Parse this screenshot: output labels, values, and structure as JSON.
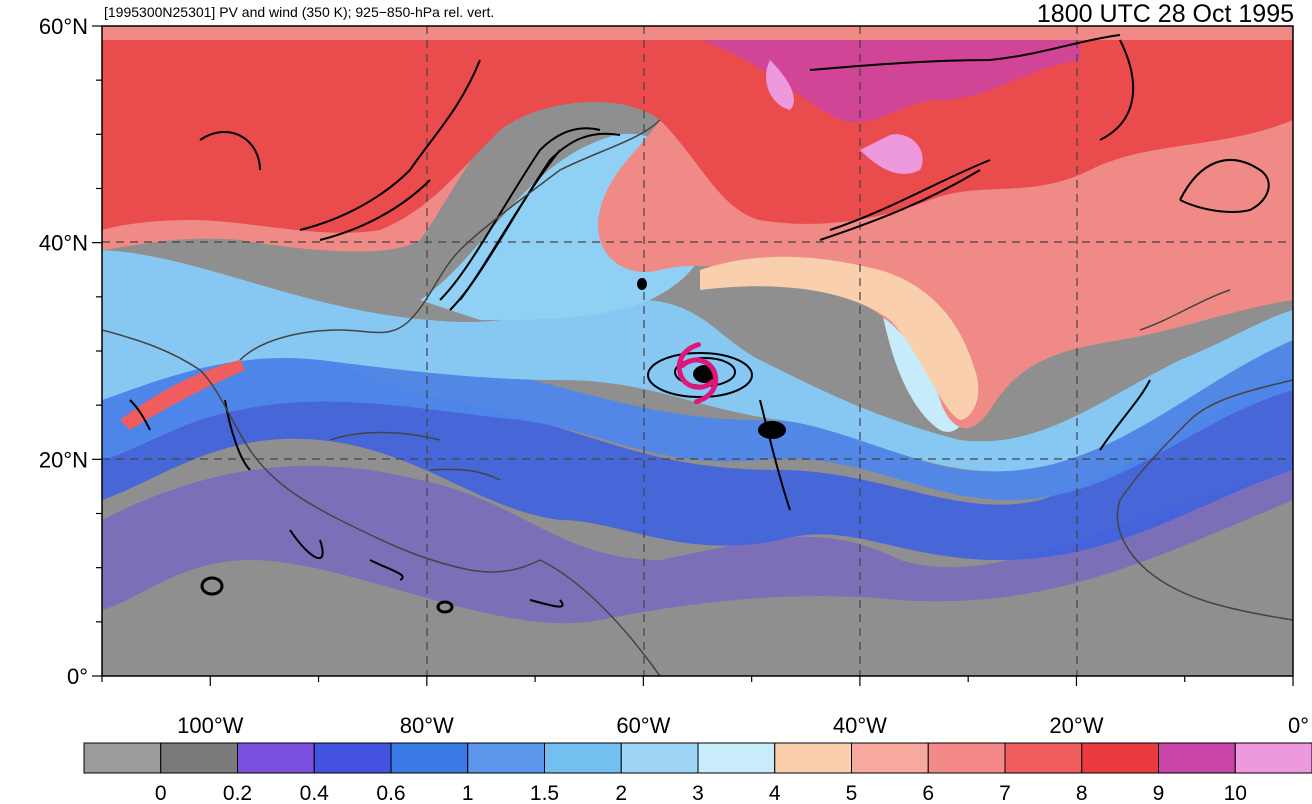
{
  "header": {
    "left_title": "[1995300N25301] PV and wind (350 K); 925−850-hPa rel. vert.",
    "right_title": "1800 UTC 28 Oct 1995"
  },
  "map": {
    "lon_range": [
      -110,
      0
    ],
    "lat_range": [
      0,
      60
    ],
    "lat_labels": [
      {
        "lat": 60,
        "text": "60°N"
      },
      {
        "lat": 40,
        "text": "40°N"
      },
      {
        "lat": 20,
        "text": "20°N"
      },
      {
        "lat": 0,
        "text": "0°"
      }
    ],
    "lon_labels": [
      {
        "lon": -100,
        "text": "100°W"
      },
      {
        "lon": -80,
        "text": "80°W"
      },
      {
        "lon": -60,
        "text": "60°W"
      },
      {
        "lon": -40,
        "text": "40°W"
      },
      {
        "lon": -20,
        "text": "20°W"
      },
      {
        "lon": 0,
        "text": "0°"
      }
    ],
    "storm_symbol": {
      "lon": -55,
      "lat": 28,
      "icon": "tropical-cyclone-icon",
      "color": "#e0177a"
    }
  },
  "colorbar": {
    "colors": [
      "#9b9b9b",
      "#7a7a7a",
      "#7b4fe0",
      "#4452e0",
      "#3a7ae6",
      "#5b96ea",
      "#72bff0",
      "#9fd6f5",
      "#c9ecfb",
      "#f9cfae",
      "#f7a99d",
      "#f48a88",
      "#ef5d5e",
      "#ea3b3e",
      "#c944a8",
      "#ee99dd"
    ],
    "labels": [
      "0",
      "0.2",
      "0.4",
      "0.6",
      "1",
      "1.5",
      "2",
      "3",
      "4",
      "5",
      "6",
      "7",
      "8",
      "9",
      "10"
    ]
  }
}
